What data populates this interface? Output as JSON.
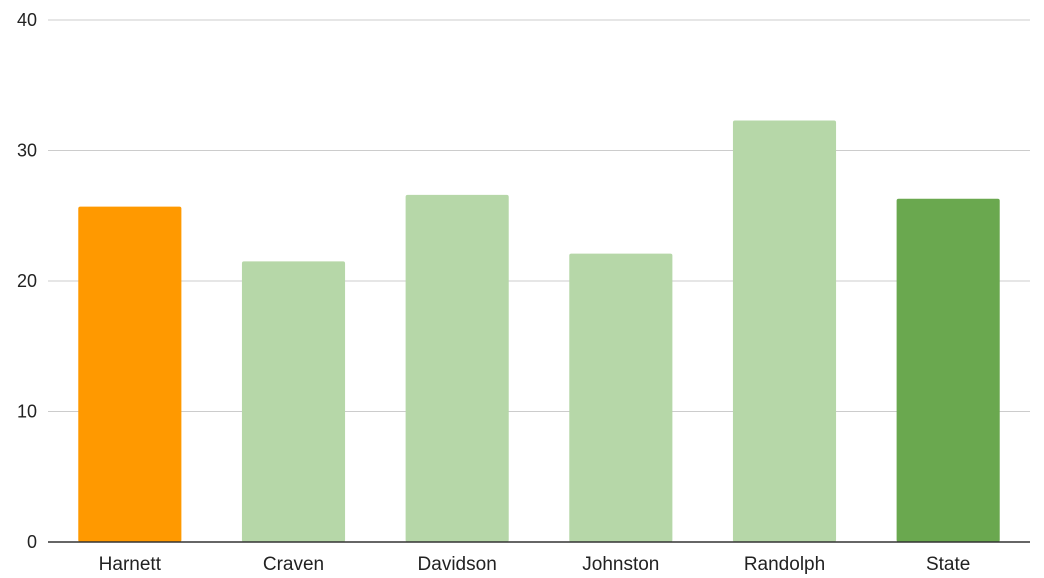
{
  "chart_data": {
    "type": "bar",
    "title": "",
    "xlabel": "",
    "ylabel": "",
    "categories": [
      "Harnett",
      "Craven",
      "Davidson",
      "Johnston",
      "Randolph",
      "State"
    ],
    "values": [
      25.7,
      21.5,
      26.6,
      22.1,
      32.3,
      26.3
    ],
    "bar_colors": [
      "#ff9900",
      "#b6d7a8",
      "#b6d7a8",
      "#b6d7a8",
      "#b6d7a8",
      "#6aa84f"
    ],
    "ylim": [
      0,
      40
    ],
    "yticks": [
      "0",
      "10",
      "20",
      "30",
      "40"
    ],
    "grid": true,
    "legend": "none"
  }
}
